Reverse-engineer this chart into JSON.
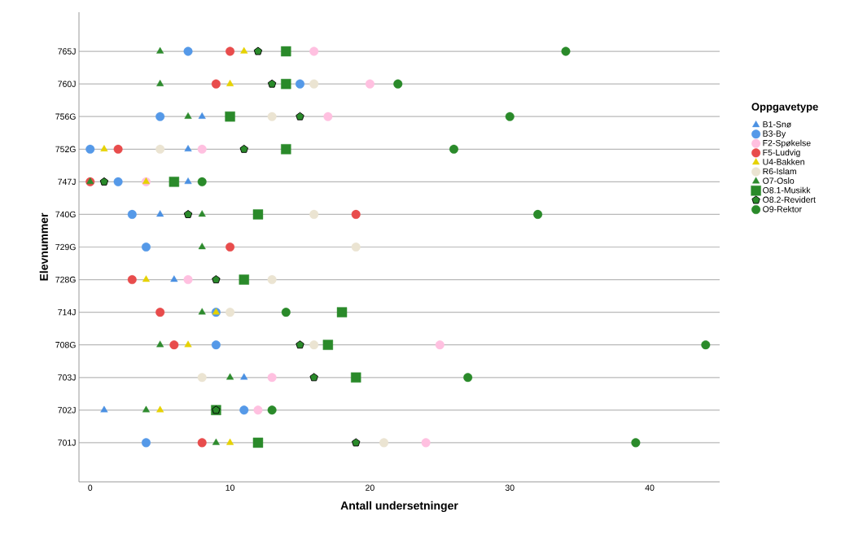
{
  "chart_data": {
    "type": "scatter",
    "orientation": "horizontal",
    "xlabel": "Antall undersetninger",
    "ylabel": "Elevnummer",
    "legend_title": "Oppgavetype",
    "legend": "right",
    "grid": "y",
    "xlim": [
      -0.8,
      45
    ],
    "xticks": [
      0,
      10,
      20,
      30,
      40
    ],
    "categories": [
      "765J",
      "760J",
      "756G",
      "752G",
      "747J",
      "740G",
      "729G",
      "728G",
      "714J",
      "708G",
      "703J",
      "702J",
      "701J"
    ],
    "series": [
      {
        "name": "B1-Snø",
        "color": "#4a90e2",
        "marker": "triangle",
        "values": [
          null,
          null,
          8,
          7,
          7,
          5,
          null,
          6,
          null,
          null,
          11,
          1,
          null
        ]
      },
      {
        "name": "B3-By",
        "color": "#5599e8",
        "marker": "circle",
        "values": [
          7,
          15,
          5,
          0,
          2,
          3,
          4,
          null,
          9,
          9,
          null,
          11,
          4
        ]
      },
      {
        "name": "F2-Spøkelse",
        "color": "#ffc0e0",
        "marker": "circle",
        "values": [
          16,
          20,
          17,
          8,
          4,
          null,
          null,
          7,
          null,
          25,
          13,
          12,
          24
        ]
      },
      {
        "name": "F5-Ludvig",
        "color": "#e84c4c",
        "marker": "circle",
        "values": [
          10,
          9,
          null,
          2,
          0,
          19,
          10,
          3,
          5,
          6,
          null,
          null,
          8
        ]
      },
      {
        "name": "U4-Bakken",
        "color": "#e6d200",
        "marker": "triangle",
        "values": [
          11,
          10,
          null,
          1,
          4,
          null,
          null,
          4,
          9,
          7,
          null,
          5,
          10
        ]
      },
      {
        "name": "R6-Islam",
        "color": "#ebe4d2",
        "marker": "circle",
        "values": [
          null,
          16,
          13,
          5,
          null,
          16,
          19,
          13,
          10,
          16,
          8,
          null,
          21
        ]
      },
      {
        "name": "O7-Oslo",
        "color": "#2e8b2e",
        "marker": "triangle",
        "values": [
          5,
          5,
          7,
          null,
          0,
          8,
          8,
          null,
          8,
          5,
          10,
          4,
          9
        ]
      },
      {
        "name": "O8.1-Musikk",
        "color": "#2a8a2a",
        "marker": "square",
        "values": [
          14,
          14,
          10,
          14,
          6,
          12,
          null,
          11,
          18,
          17,
          19,
          9,
          12
        ]
      },
      {
        "name": "O8.2-Revidert",
        "color": "#2a8a2a",
        "values": [
          12,
          13,
          15,
          11,
          1,
          7,
          null,
          9,
          null,
          15,
          16,
          9,
          19
        ]
      },
      {
        "name": "O9-Rektor",
        "color": "#2a8a2a",
        "marker": "circle",
        "values": [
          34,
          22,
          30,
          26,
          8,
          32,
          null,
          null,
          14,
          44,
          27,
          13,
          39
        ]
      }
    ]
  }
}
